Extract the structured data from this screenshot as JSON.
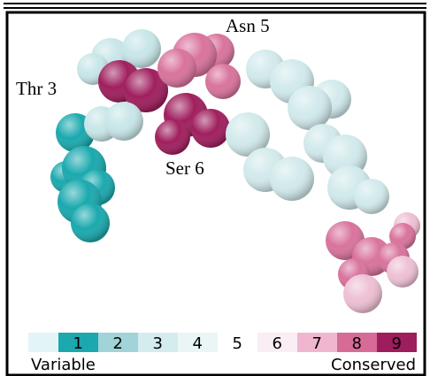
{
  "labels": {
    "asn": "Asn 5",
    "thr": "Thr 3",
    "ser": "Ser 6"
  },
  "scale": {
    "keys": [
      {
        "label": "1",
        "color": "#1ba8ae"
      },
      {
        "label": "2",
        "color": "#a0d4d8"
      },
      {
        "label": "3",
        "color": "#d5ecee"
      },
      {
        "label": "4",
        "color": "#eaf5f6"
      },
      {
        "label": "5",
        "color": "#ffffff"
      },
      {
        "label": "6",
        "color": "#f8eef3"
      },
      {
        "label": "7",
        "color": "#f0b6cf"
      },
      {
        "label": "8",
        "color": "#d76b98"
      },
      {
        "label": "9",
        "color": "#9e1d5c"
      }
    ],
    "left": "Variable",
    "right": "Conserved"
  }
}
